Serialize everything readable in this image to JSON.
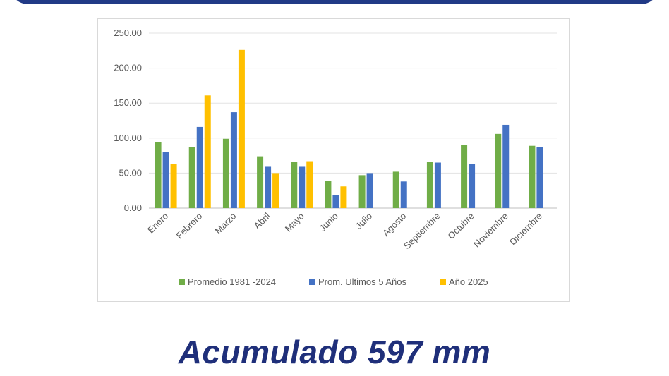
{
  "footer": {
    "title": "Acumulado 597 mm"
  },
  "colors": {
    "banner": "#213a86",
    "footer_text": "#1f2f7a"
  },
  "chart_data": {
    "type": "bar",
    "categories": [
      "Enero",
      "Febrero",
      "Marzo",
      "Abril",
      "Mayo",
      "Junio",
      "Julio",
      "Agosto",
      "Septiembre",
      "Octubre",
      "Noviembre",
      "Diciembre"
    ],
    "series": [
      {
        "name": "Promedio 1981 -2024",
        "color": "#70ad47",
        "values": [
          94,
          87,
          99,
          74,
          66,
          39,
          47,
          52,
          66,
          90,
          106,
          89
        ]
      },
      {
        "name": "Prom. Ultimos 5 Años",
        "color": "#4472c4",
        "values": [
          80,
          116,
          137,
          59,
          59,
          19,
          50,
          38,
          65,
          63,
          119,
          87
        ]
      },
      {
        "name": "Año 2025",
        "color": "#ffc000",
        "values": [
          63,
          161,
          226,
          50,
          67,
          31,
          null,
          null,
          null,
          null,
          null,
          null
        ]
      }
    ],
    "y_ticks": [
      "0.00",
      "50.00",
      "100.00",
      "150.00",
      "200.00",
      "250.00"
    ],
    "ylim": [
      0,
      250
    ],
    "grid": true,
    "legend_position": "bottom"
  }
}
